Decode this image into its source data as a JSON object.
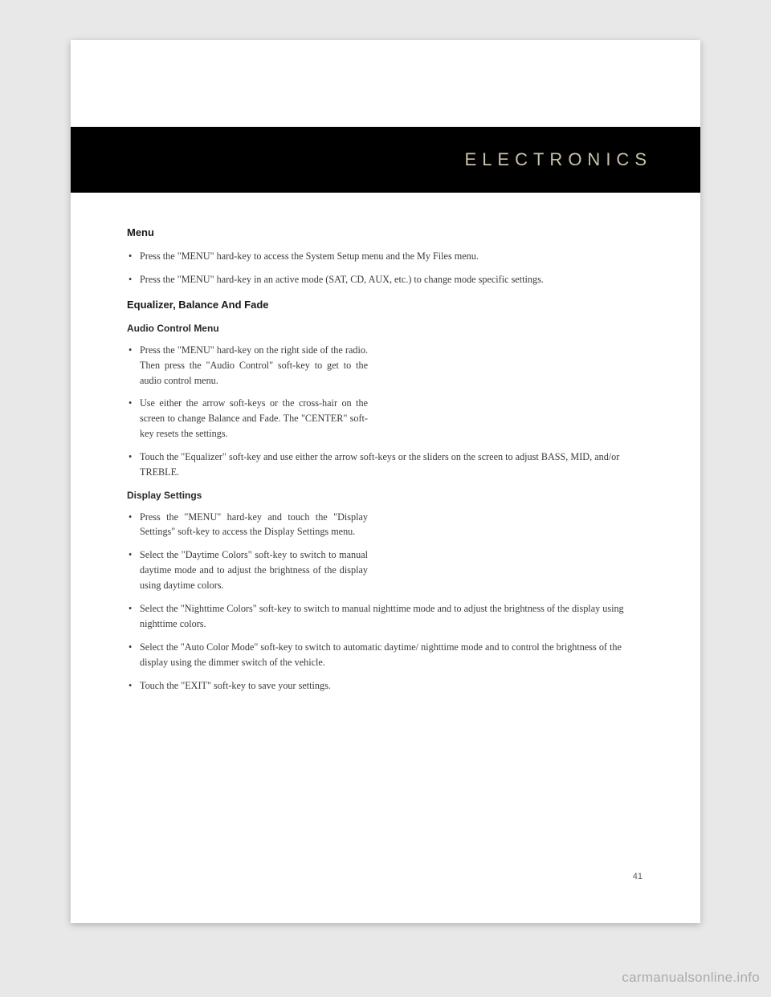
{
  "header": {
    "section_title": "ELECTRONICS"
  },
  "content": {
    "menu": {
      "heading": "Menu",
      "items": [
        "Press the \"MENU\" hard-key to access the System Setup menu and the My Files menu.",
        "Press the \"MENU\" hard-key in an active mode (SAT, CD, AUX, etc.) to change mode specific settings."
      ]
    },
    "equalizer": {
      "heading": "Equalizer, Balance And Fade",
      "audio": {
        "heading": "Audio Control Menu",
        "items": [
          "Press the \"MENU\" hard-key on the right side of the radio. Then press the \"Audio Control\" soft-key to get to the audio control menu.",
          "Use either the arrow soft-keys or the cross-hair on the screen to change Balance and Fade. The \"CENTER\" soft-key resets the settings.",
          "Touch the \"Equalizer\" soft-key and use either the arrow soft-keys or the sliders on the screen to adjust BASS, MID, and/or TREBLE."
        ]
      },
      "display": {
        "heading": "Display Settings",
        "items": [
          "Press the \"MENU\" hard-key and touch the \"Display Settings\" soft-key to access the Display Settings menu.",
          "Select the \"Daytime Colors\" soft-key to switch to manual daytime mode and to adjust the brightness of the display using daytime colors.",
          "Select the \"Nighttime Colors\" soft-key to switch to manual nighttime mode and to adjust the brightness of the display using nighttime colors.",
          "Select the \"Auto Color Mode\" soft-key to switch to automatic daytime/ nighttime mode and to control the brightness of the display using the dimmer switch of the vehicle.",
          "Touch the \"EXIT\" soft-key to save your settings."
        ]
      }
    }
  },
  "page_number": "41",
  "watermark": "carmanualsonline.info"
}
